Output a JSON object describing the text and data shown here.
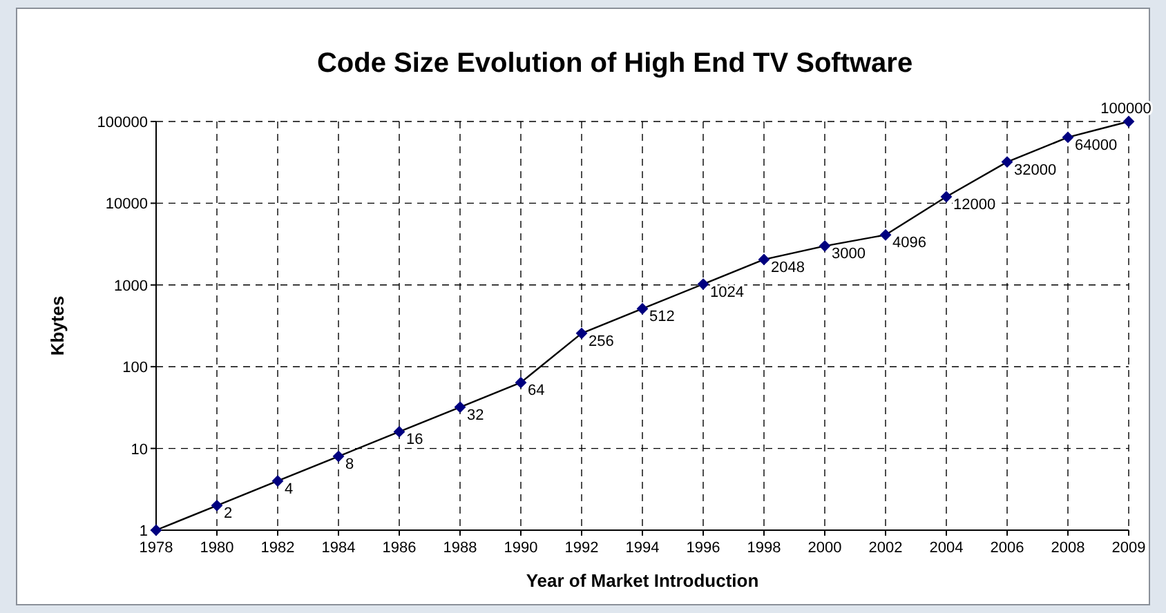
{
  "chart_data": {
    "type": "line",
    "title": "Code Size Evolution of High End TV Software",
    "xlabel": "Year of Market Introduction",
    "ylabel": "Kbytes",
    "categories": [
      "1978",
      "1980",
      "1982",
      "1984",
      "1986",
      "1988",
      "1990",
      "1992",
      "1994",
      "1996",
      "1998",
      "2000",
      "2002",
      "2004",
      "2006",
      "2008",
      "2009"
    ],
    "series": [
      {
        "color": "#000080",
        "values": [
          1,
          2,
          4,
          8,
          16,
          32,
          64,
          256,
          512,
          1024,
          2048,
          3000,
          4096,
          12000,
          32000,
          64000,
          100000
        ],
        "value_labels": [
          null,
          "2",
          "4",
          "8",
          "16",
          "32",
          "64",
          "256",
          "512",
          "1024",
          "2048",
          "3000",
          "4096",
          "12000",
          "32000",
          "64000",
          "100000"
        ]
      }
    ],
    "log": true,
    "ylim": [
      1,
      100000
    ],
    "yticks": [
      1,
      10,
      100,
      1000,
      10000,
      100000
    ],
    "grid": true,
    "marker": "diamond",
    "line_style": "solid"
  }
}
